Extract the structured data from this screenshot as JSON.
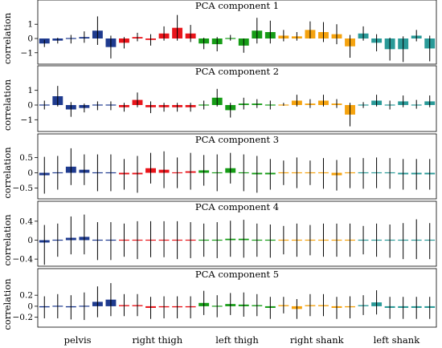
{
  "chart_data": {
    "type": "bar",
    "groups": [
      "pelvis",
      "right thigh",
      "left thigh",
      "right shank",
      "left shank"
    ],
    "group_colors": [
      "#1f3b8f",
      "#e8151b",
      "#169c16",
      "#f5a30f",
      "#2a9a98"
    ],
    "bars_per_group": 6,
    "ylabel": "correlation",
    "panels": [
      {
        "title": "PCA component 1",
        "ylim": [
          -1.8,
          1.8
        ],
        "yticks": [
          -1,
          0,
          1
        ],
        "tick_labels": [
          "−1",
          "0",
          "1"
        ],
        "values": [
          -0.35,
          -0.15,
          -0.05,
          0.1,
          0.55,
          -0.6,
          -0.3,
          0.1,
          -0.1,
          0.35,
          0.75,
          0.35,
          -0.35,
          -0.4,
          0.05,
          -0.5,
          0.55,
          0.45,
          0.2,
          0.15,
          0.6,
          0.45,
          0.3,
          -0.55,
          0.35,
          -0.3,
          -0.75,
          -0.75,
          0.2,
          -0.7
        ],
        "errors": [
          0.25,
          0.2,
          0.3,
          0.4,
          1.0,
          0.8,
          0.4,
          0.3,
          0.4,
          0.5,
          0.9,
          0.6,
          0.4,
          0.5,
          0.2,
          0.5,
          0.9,
          0.8,
          0.4,
          0.3,
          0.6,
          0.7,
          0.7,
          0.8,
          0.5,
          0.6,
          0.8,
          0.9,
          0.4,
          0.9
        ]
      },
      {
        "title": "PCA component 2",
        "ylim": [
          -1.8,
          1.8
        ],
        "yticks": [
          -1,
          0,
          1
        ],
        "tick_labels": [
          "−1",
          "0",
          "1"
        ],
        "values": [
          0.0,
          0.6,
          -0.3,
          -0.2,
          -0.05,
          -0.05,
          -0.15,
          0.35,
          -0.15,
          -0.15,
          -0.15,
          -0.15,
          0.0,
          0.5,
          -0.35,
          0.1,
          0.1,
          0.0,
          0.05,
          0.3,
          0.1,
          0.3,
          0.1,
          -0.65,
          0.0,
          0.3,
          0.0,
          0.25,
          0.05,
          0.25
        ],
        "errors": [
          0.3,
          0.7,
          0.5,
          0.3,
          0.3,
          0.3,
          0.3,
          0.5,
          0.4,
          0.3,
          0.3,
          0.3,
          0.3,
          0.6,
          0.5,
          0.4,
          0.3,
          0.3,
          0.1,
          0.4,
          0.3,
          0.4,
          0.3,
          0.8,
          0.2,
          0.4,
          0.3,
          0.4,
          0.3,
          0.4
        ]
      },
      {
        "title": "PCA component 3",
        "ylim": [
          -0.85,
          0.85
        ],
        "yticks": [
          -0.5,
          0,
          0.5
        ],
        "tick_labels": [
          "−0.5",
          "0",
          "0.5"
        ],
        "values": [
          -0.08,
          0.0,
          0.2,
          0.1,
          0.0,
          0.0,
          -0.05,
          -0.05,
          0.15,
          0.1,
          0.0,
          0.05,
          0.08,
          0.0,
          0.15,
          0.0,
          -0.05,
          -0.05,
          0.0,
          0.0,
          0.0,
          -0.02,
          -0.08,
          0.0,
          -0.02,
          0.0,
          -0.02,
          -0.05,
          -0.05,
          -0.05
        ],
        "errors": [
          0.6,
          0.55,
          0.6,
          0.5,
          0.6,
          0.6,
          0.5,
          0.6,
          0.5,
          0.6,
          0.5,
          0.6,
          0.5,
          0.6,
          0.5,
          0.6,
          0.6,
          0.5,
          0.4,
          0.5,
          0.4,
          0.5,
          0.5,
          0.5,
          0.5,
          0.5,
          0.5,
          0.5,
          0.5,
          0.5
        ]
      },
      {
        "title": "PCA component 4",
        "ylim": [
          -0.55,
          0.55
        ],
        "yticks": [
          -0.4,
          0,
          0.4
        ],
        "tick_labels": [
          "−0.4",
          "0",
          "0.4"
        ],
        "values": [
          -0.05,
          0.0,
          0.05,
          0.07,
          -0.02,
          -0.02,
          0.0,
          0.0,
          0.02,
          0.02,
          0.0,
          0.0,
          0.0,
          0.0,
          0.03,
          0.03,
          0.0,
          -0.02,
          0.0,
          0.0,
          0.0,
          0.0,
          0.0,
          0.0,
          0.0,
          0.0,
          -0.02,
          -0.02,
          0.02,
          -0.02
        ],
        "errors": [
          0.42,
          0.35,
          0.4,
          0.42,
          0.4,
          0.4,
          0.35,
          0.4,
          0.38,
          0.38,
          0.4,
          0.38,
          0.35,
          0.38,
          0.38,
          0.4,
          0.35,
          0.35,
          0.3,
          0.35,
          0.32,
          0.35,
          0.35,
          0.35,
          0.3,
          0.35,
          0.35,
          0.38,
          0.42,
          0.38
        ],
        "error_offsets": [
          -0.05,
          0.0,
          0.05,
          0.05,
          0.0,
          0.0,
          0.0,
          0.0,
          0.0,
          0.0,
          0.0,
          0.0,
          0.0,
          0.0,
          0.0,
          0.0,
          0.0,
          0.0,
          0.0,
          0.0,
          0.0,
          0.0,
          0.0,
          0.0,
          0.0,
          0.0,
          0.0,
          0.0,
          0.0,
          0.0
        ]
      },
      {
        "title": "PCA component 5",
        "ylim": [
          -0.38,
          0.45
        ],
        "yticks": [
          -0.2,
          0,
          0.2
        ],
        "tick_labels": [
          "−0.2",
          "0",
          "0.2"
        ],
        "values": [
          -0.02,
          0.0,
          -0.02,
          0.0,
          0.08,
          0.12,
          0.02,
          0.02,
          -0.03,
          -0.02,
          -0.02,
          -0.02,
          0.06,
          0.0,
          0.04,
          0.03,
          0.02,
          -0.03,
          0.02,
          -0.05,
          0.02,
          0.02,
          -0.03,
          -0.02,
          0.02,
          0.07,
          -0.03,
          -0.03,
          -0.03,
          -0.03
        ],
        "errors": [
          0.2,
          0.22,
          0.22,
          0.25,
          0.28,
          0.3,
          0.2,
          0.2,
          0.2,
          0.2,
          0.2,
          0.2,
          0.22,
          0.2,
          0.2,
          0.22,
          0.2,
          0.2,
          0.15,
          0.18,
          0.2,
          0.2,
          0.2,
          0.2,
          0.18,
          0.22,
          0.2,
          0.2,
          0.2,
          0.2
        ]
      }
    ]
  }
}
